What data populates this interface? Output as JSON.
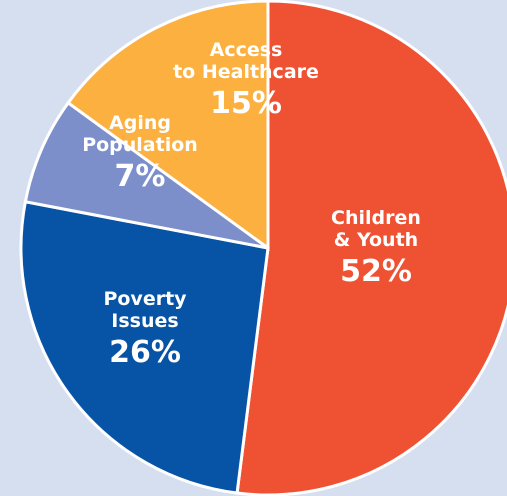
{
  "chart_data": {
    "type": "pie",
    "title": "",
    "start_angle_deg": 0,
    "direction": "clockwise",
    "slices": [
      {
        "label_lines": [
          "Children",
          "& Youth"
        ],
        "value": 52,
        "value_label": "52%",
        "color": "#ef5133"
      },
      {
        "label_lines": [
          "Poverty",
          "Issues"
        ],
        "value": 26,
        "value_label": "26%",
        "color": "#0753a6"
      },
      {
        "label_lines": [
          "Aging",
          "Population"
        ],
        "value": 7,
        "value_label": "7%",
        "color": "#7c8fca"
      },
      {
        "label_lines": [
          "Access",
          "to Healthcare"
        ],
        "value": 15,
        "value_label": "15%",
        "color": "#fbb040"
      }
    ],
    "label_color": "#ffffff",
    "background_color": "#d6dff0"
  }
}
